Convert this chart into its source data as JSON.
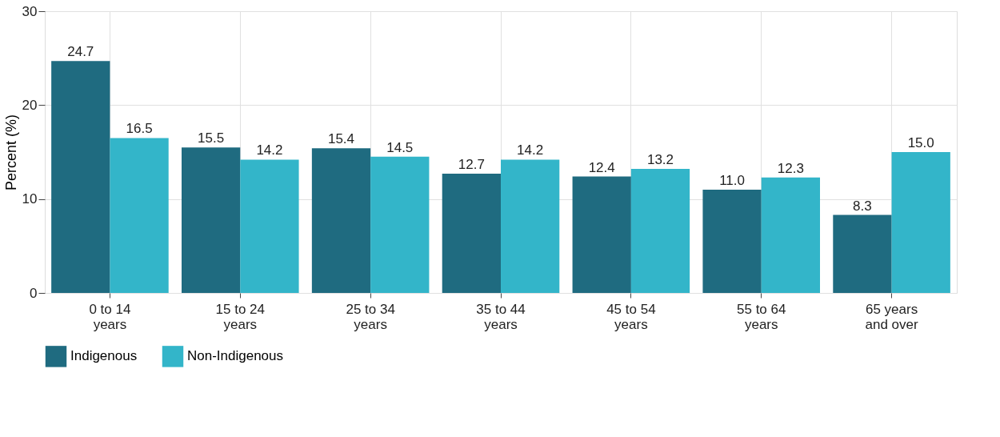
{
  "chart_data": {
    "type": "bar",
    "ylabel": "Percent (%)",
    "categories": [
      "0 to 14 years",
      "15 to 24 years",
      "25 to 34 years",
      "35 to 44 years",
      "45 to 54 years",
      "55 to 64 years",
      "65 years and over"
    ],
    "series": [
      {
        "name": "Indigenous",
        "color": "#1f6b80",
        "values": [
          24.7,
          15.5,
          15.4,
          12.7,
          12.4,
          11.0,
          8.3
        ],
        "value_labels": [
          "24.7",
          "15.5",
          "15.4",
          "12.7",
          "12.4",
          "11.0",
          "8.3"
        ]
      },
      {
        "name": "Non-Indigenous",
        "color": "#33b5c9",
        "values": [
          16.5,
          14.2,
          14.5,
          14.2,
          13.2,
          12.3,
          15.0
        ],
        "value_labels": [
          "16.5",
          "14.2",
          "14.5",
          "14.2",
          "13.2",
          "12.3",
          "15.0"
        ]
      }
    ],
    "ylim": [
      0,
      30
    ],
    "yticks": [
      0,
      10,
      20,
      30
    ],
    "grid": true,
    "legend": "bottom"
  }
}
